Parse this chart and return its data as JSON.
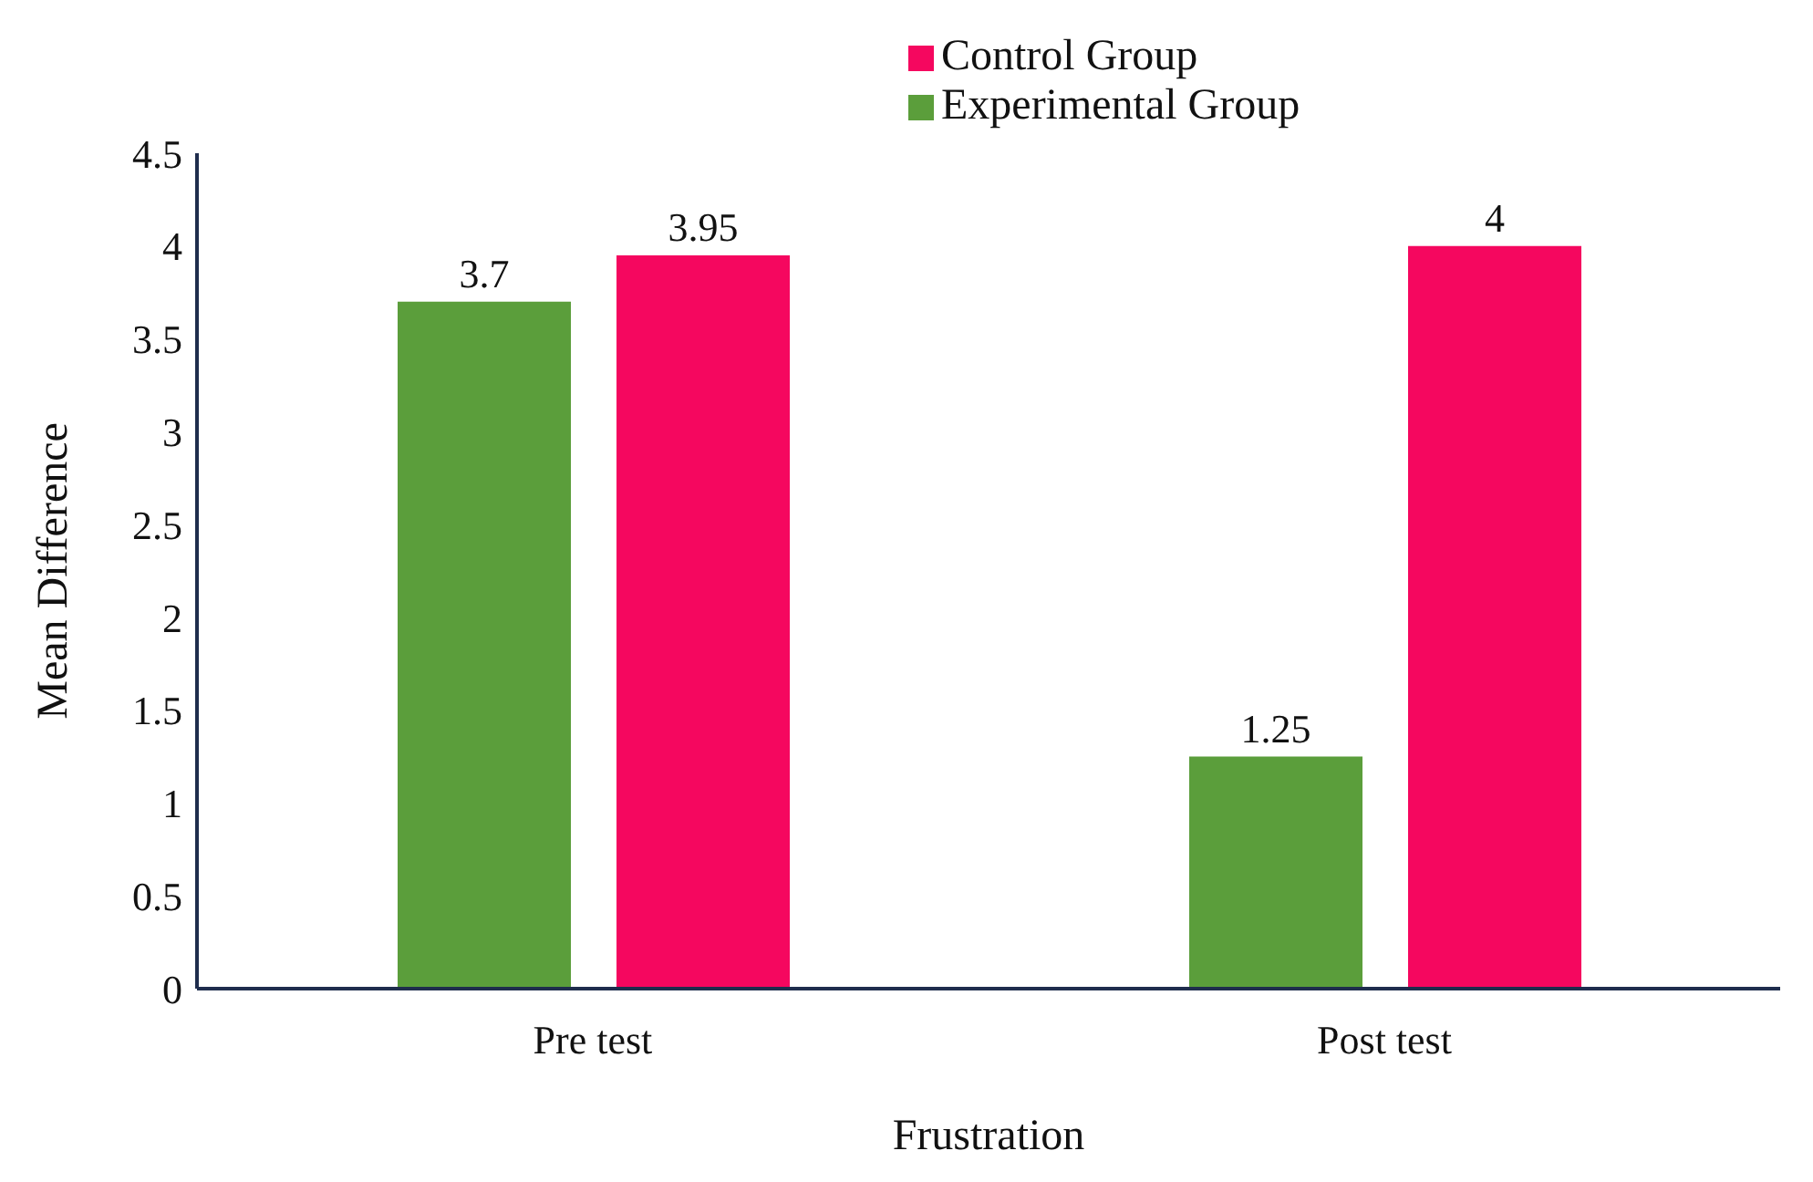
{
  "chart_data": {
    "type": "bar",
    "xlabel": "Frustration",
    "ylabel": "Mean Difference",
    "categories": [
      "Pre test",
      "Post test"
    ],
    "series": [
      {
        "name": "Experimental Group",
        "color": "#5b9e3b",
        "values": [
          3.7,
          1.25
        ]
      },
      {
        "name": "Control Group",
        "color": "#f5075f",
        "values": [
          3.95,
          4
        ]
      }
    ],
    "ylim": [
      0,
      4.5
    ],
    "yticks": [
      0,
      0.5,
      1,
      1.5,
      2,
      2.5,
      3,
      3.5,
      4,
      4.5
    ],
    "data_labels": true,
    "grid": false,
    "legend": "top"
  }
}
